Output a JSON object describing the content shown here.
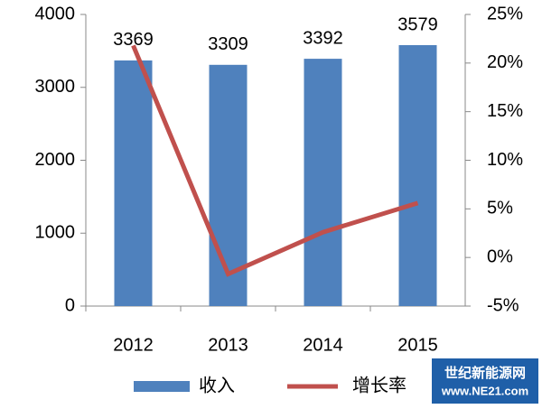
{
  "chart_data": {
    "type": "bar-line",
    "categories": [
      "2012",
      "2013",
      "2014",
      "2015"
    ],
    "series": [
      {
        "name": "收入",
        "color": "#4f81bd",
        "type": "bar",
        "values": [
          3369,
          3309,
          3392,
          3579
        ]
      },
      {
        "name": "增长率",
        "color": "#c0504d",
        "type": "line",
        "axis": "y2",
        "values": [
          21.8,
          -1.7,
          2.6,
          5.6
        ]
      }
    ],
    "ylim": [
      0,
      4000
    ],
    "yticks": [
      0,
      1000,
      2000,
      3000,
      4000
    ],
    "y2lim": [
      -5,
      25
    ],
    "y2ticks": [
      {
        "value": -5,
        "label": "-5%"
      },
      {
        "value": 0,
        "label": "0%"
      },
      {
        "value": 5,
        "label": "5%"
      },
      {
        "value": 10,
        "label": "10%"
      },
      {
        "value": 15,
        "label": "15%"
      },
      {
        "value": 20,
        "label": "20%"
      },
      {
        "value": 25,
        "label": "25%"
      }
    ],
    "legend": "bottom"
  },
  "watermark": {
    "title": "世纪新能源网",
    "url": "www.NE21.com"
  }
}
